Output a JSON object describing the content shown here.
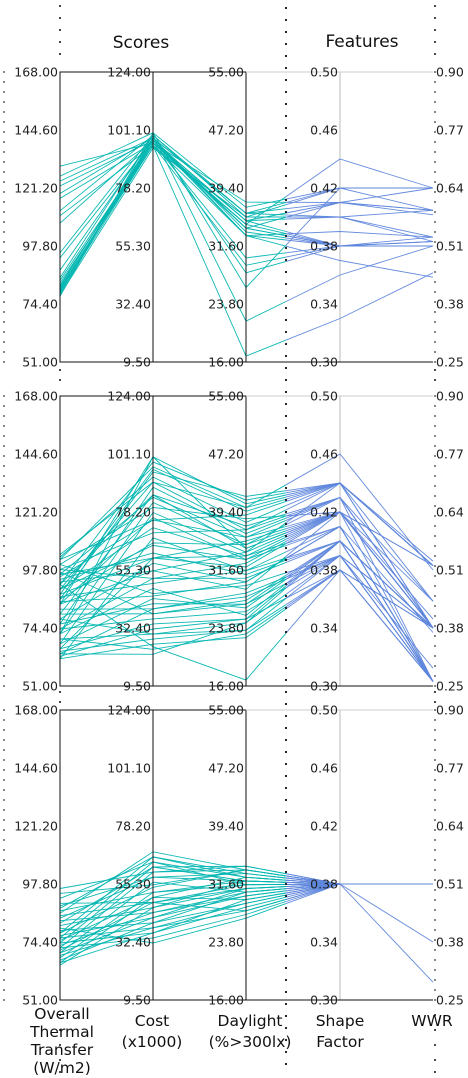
{
  "section_titles": {
    "scores": "Scores",
    "features": "Features"
  },
  "axes": [
    {
      "key": "thermal",
      "label_lines": [
        "Overall",
        "Thermal",
        "Transfer",
        "(W/m2)"
      ],
      "ticks": [
        "168.00",
        "144.60",
        "121.20",
        "97.80",
        "74.40",
        "51.00"
      ],
      "range": [
        51,
        168
      ]
    },
    {
      "key": "cost",
      "label_lines": [
        "Cost",
        "(x1000)"
      ],
      "ticks": [
        "124.00",
        "101.10",
        "78.20",
        "55.30",
        "32.40",
        "9.50"
      ],
      "range": [
        9.5,
        124
      ]
    },
    {
      "key": "daylight",
      "label_lines": [
        "Daylight",
        "(%>300lx)"
      ],
      "ticks": [
        "55.00",
        "47.20",
        "39.40",
        "31.60",
        "23.80",
        "16.00"
      ],
      "range": [
        16,
        55
      ]
    },
    {
      "key": "shape",
      "label_lines": [
        "Shape",
        "Factor"
      ],
      "ticks": [
        "0.50",
        "0.46",
        "0.42",
        "0.38",
        "0.34",
        "0.30"
      ],
      "range": [
        0.3,
        0.5
      ]
    },
    {
      "key": "wwr",
      "label_lines": [
        "WWR"
      ],
      "ticks": [
        "0.90",
        "0.77",
        "0.64",
        "0.51",
        "0.38",
        "0.25"
      ],
      "range": [
        0.25,
        0.9
      ]
    }
  ],
  "colors": {
    "scores_lines": "#00b5b0",
    "features_lines": "#5e86dc",
    "frame": "#111111",
    "feature_axis": "#bbbbbb"
  },
  "chart_data": {
    "type": "parallel-coordinates",
    "panels": [
      {
        "name": "panel-1",
        "lines": [
          [
            130,
            96,
            37.5,
            0.41,
            0.64
          ],
          [
            126,
            100,
            36.8,
            0.42,
            0.64
          ],
          [
            124,
            98,
            36.0,
            0.41,
            0.59
          ],
          [
            122,
            97,
            35.0,
            0.4,
            0.53
          ],
          [
            119,
            98,
            36.0,
            0.4,
            0.52
          ],
          [
            117,
            96,
            34.5,
            0.44,
            0.64
          ],
          [
            112,
            99,
            35.5,
            0.42,
            0.59
          ],
          [
            107,
            97,
            34.0,
            0.41,
            0.58
          ],
          [
            93,
            97,
            33.0,
            0.39,
            0.53
          ],
          [
            88,
            98,
            28.0,
            0.38,
            0.51
          ],
          [
            85,
            99,
            36.0,
            0.42,
            0.64
          ],
          [
            84,
            96,
            35.0,
            0.41,
            0.59
          ],
          [
            83,
            95,
            34.5,
            0.38,
            0.52
          ],
          [
            82,
            97,
            34.0,
            0.38,
            0.51
          ],
          [
            81.5,
            98,
            33.5,
            0.38,
            0.51
          ],
          [
            81,
            96,
            30.0,
            0.38,
            0.51
          ],
          [
            80.5,
            95,
            29.0,
            0.38,
            0.53
          ],
          [
            80,
            96,
            34.0,
            0.38,
            0.52
          ],
          [
            79.5,
            97,
            35.0,
            0.38,
            0.51
          ],
          [
            79,
            95,
            33.0,
            0.37,
            0.44
          ],
          [
            78.5,
            98,
            33.0,
            0.38,
            0.51
          ],
          [
            78,
            94,
            35.5,
            0.4,
            0.59
          ],
          [
            77.5,
            100,
            26.0,
            0.42,
            0.64
          ],
          [
            95,
            99,
            21.5,
            0.36,
            0.51
          ],
          [
            110,
            95,
            16.8,
            0.33,
            0.45
          ]
        ]
      },
      {
        "name": "panel-2",
        "lines": [
          [
            104,
            90,
            40.0,
            0.44,
            0.52
          ],
          [
            103,
            92,
            38.0,
            0.44,
            0.53
          ],
          [
            102,
            75,
            39.0,
            0.44,
            0.52
          ],
          [
            100,
            80,
            38.5,
            0.42,
            0.52
          ],
          [
            98,
            70,
            37.0,
            0.43,
            0.44
          ],
          [
            96,
            60,
            35.5,
            0.42,
            0.4
          ],
          [
            95,
            75,
            36.0,
            0.43,
            0.38
          ],
          [
            93,
            55,
            34.0,
            0.44,
            0.38
          ],
          [
            92,
            85,
            34.5,
            0.42,
            0.52
          ],
          [
            90,
            65,
            33.0,
            0.41,
            0.37
          ],
          [
            88,
            60,
            32.0,
            0.42,
            0.38
          ],
          [
            87,
            50,
            31.5,
            0.4,
            0.38
          ],
          [
            85,
            45,
            30.0,
            0.41,
            0.26
          ],
          [
            84,
            55,
            29.0,
            0.42,
            0.38
          ],
          [
            82,
            40,
            28.5,
            0.39,
            0.29
          ],
          [
            80,
            38,
            27.5,
            0.4,
            0.38
          ],
          [
            78,
            58,
            30.0,
            0.41,
            0.26
          ],
          [
            76,
            42,
            27.0,
            0.4,
            0.26
          ],
          [
            74,
            36,
            26.0,
            0.39,
            0.38
          ],
          [
            72,
            48,
            25.5,
            0.4,
            0.26
          ],
          [
            70,
            30,
            24.5,
            0.39,
            0.26
          ],
          [
            68,
            44,
            26.5,
            0.4,
            0.26
          ],
          [
            66,
            34,
            25.0,
            0.4,
            0.38
          ],
          [
            65,
            28,
            23.5,
            0.38,
            0.26
          ],
          [
            64,
            40,
            28.0,
            0.39,
            0.26
          ],
          [
            63,
            32,
            25.0,
            0.38,
            0.26
          ],
          [
            62,
            26,
            22.5,
            0.38,
            0.38
          ],
          [
            92,
            98,
            41.0,
            0.44,
            0.52
          ],
          [
            88,
            95,
            39.5,
            0.44,
            0.52
          ],
          [
            84,
            100,
            40.5,
            0.44,
            0.44
          ],
          [
            80,
            85,
            37.5,
            0.43,
            0.38
          ],
          [
            76,
            88,
            36.5,
            0.43,
            0.38
          ],
          [
            72,
            82,
            35.0,
            0.43,
            0.26
          ],
          [
            68,
            78,
            34.0,
            0.42,
            0.26
          ],
          [
            86,
            66,
            35.0,
            0.42,
            0.38
          ],
          [
            90,
            72,
            33.5,
            0.41,
            0.26
          ],
          [
            94,
            62,
            31.0,
            0.4,
            0.38
          ],
          [
            98,
            52,
            30.5,
            0.4,
            0.26
          ],
          [
            100,
            46,
            29.5,
            0.39,
            0.38
          ],
          [
            97,
            38,
            27.0,
            0.39,
            0.26
          ],
          [
            64,
            22,
            24.5,
            0.4,
            0.38
          ],
          [
            70,
            24,
            23.0,
            0.38,
            0.26
          ],
          [
            78,
            30,
            23.5,
            0.39,
            0.26
          ],
          [
            74,
            52,
            32.5,
            0.42,
            0.38
          ],
          [
            66,
            60,
            33.5,
            0.42,
            0.38
          ],
          [
            62,
            68,
            31.5,
            0.41,
            0.26
          ],
          [
            84,
            76,
            33.0,
            0.42,
            0.44
          ],
          [
            90,
            90,
            37.0,
            0.44,
            0.38
          ],
          [
            96,
            84,
            36.0,
            0.42,
            0.38
          ],
          [
            102,
            96,
            40.0,
            0.46,
            0.51
          ],
          [
            86,
            94,
            41.5,
            0.44,
            0.52
          ],
          [
            72,
            100,
            34.5,
            0.42,
            0.38
          ],
          [
            92,
            25,
            16.8,
            0.38,
            0.38
          ]
        ]
      },
      {
        "name": "panel-3",
        "lines": [
          [
            94,
            55,
            33.5,
            0.38,
            0.51
          ],
          [
            92,
            64,
            32.5,
            0.38,
            0.51
          ],
          [
            89,
            58,
            33.0,
            0.38,
            0.51
          ],
          [
            87,
            52,
            31.5,
            0.38,
            0.51
          ],
          [
            85,
            48,
            31.0,
            0.38,
            0.51
          ],
          [
            83,
            44,
            30.0,
            0.38,
            0.51
          ],
          [
            81,
            46,
            32.0,
            0.38,
            0.51
          ],
          [
            79,
            40,
            29.0,
            0.38,
            0.51
          ],
          [
            78,
            54,
            33.5,
            0.38,
            0.51
          ],
          [
            77,
            42,
            31.0,
            0.38,
            0.51
          ],
          [
            76,
            38,
            28.0,
            0.38,
            0.51
          ],
          [
            75,
            50,
            32.5,
            0.38,
            0.51
          ],
          [
            74,
            36,
            29.5,
            0.38,
            0.51
          ],
          [
            73,
            44,
            30.5,
            0.38,
            0.51
          ],
          [
            72,
            34,
            27.5,
            0.38,
            0.51
          ],
          [
            71,
            48,
            31.5,
            0.38,
            0.51
          ],
          [
            70,
            42,
            30.0,
            0.38,
            0.51
          ],
          [
            69,
            38,
            29.0,
            0.38,
            0.51
          ],
          [
            68,
            52,
            32.0,
            0.38,
            0.51
          ],
          [
            67,
            40,
            30.5,
            0.38,
            0.51
          ],
          [
            66,
            36,
            28.5,
            0.38,
            0.51
          ],
          [
            65,
            46,
            31.0,
            0.38,
            0.51
          ],
          [
            96,
            60,
            34.0,
            0.38,
            0.51
          ],
          [
            88,
            66,
            33.0,
            0.38,
            0.51
          ],
          [
            82,
            62,
            32.0,
            0.38,
            0.51
          ],
          [
            76,
            64,
            31.5,
            0.38,
            0.51
          ],
          [
            70,
            56,
            30.5,
            0.38,
            0.51
          ],
          [
            90,
            48,
            28.0,
            0.38,
            0.51
          ],
          [
            80,
            32,
            27.0,
            0.38,
            0.51
          ],
          [
            72,
            60,
            33.5,
            0.38,
            0.38
          ],
          [
            84,
            58,
            32.0,
            0.38,
            0.51
          ],
          [
            74,
            62,
            34.0,
            0.38,
            0.29
          ],
          [
            66,
            50,
            29.5,
            0.38,
            0.51
          ],
          [
            86,
            68,
            33.5,
            0.38,
            0.51
          ],
          [
            78,
            66,
            32.5,
            0.38,
            0.51
          ]
        ]
      }
    ]
  }
}
